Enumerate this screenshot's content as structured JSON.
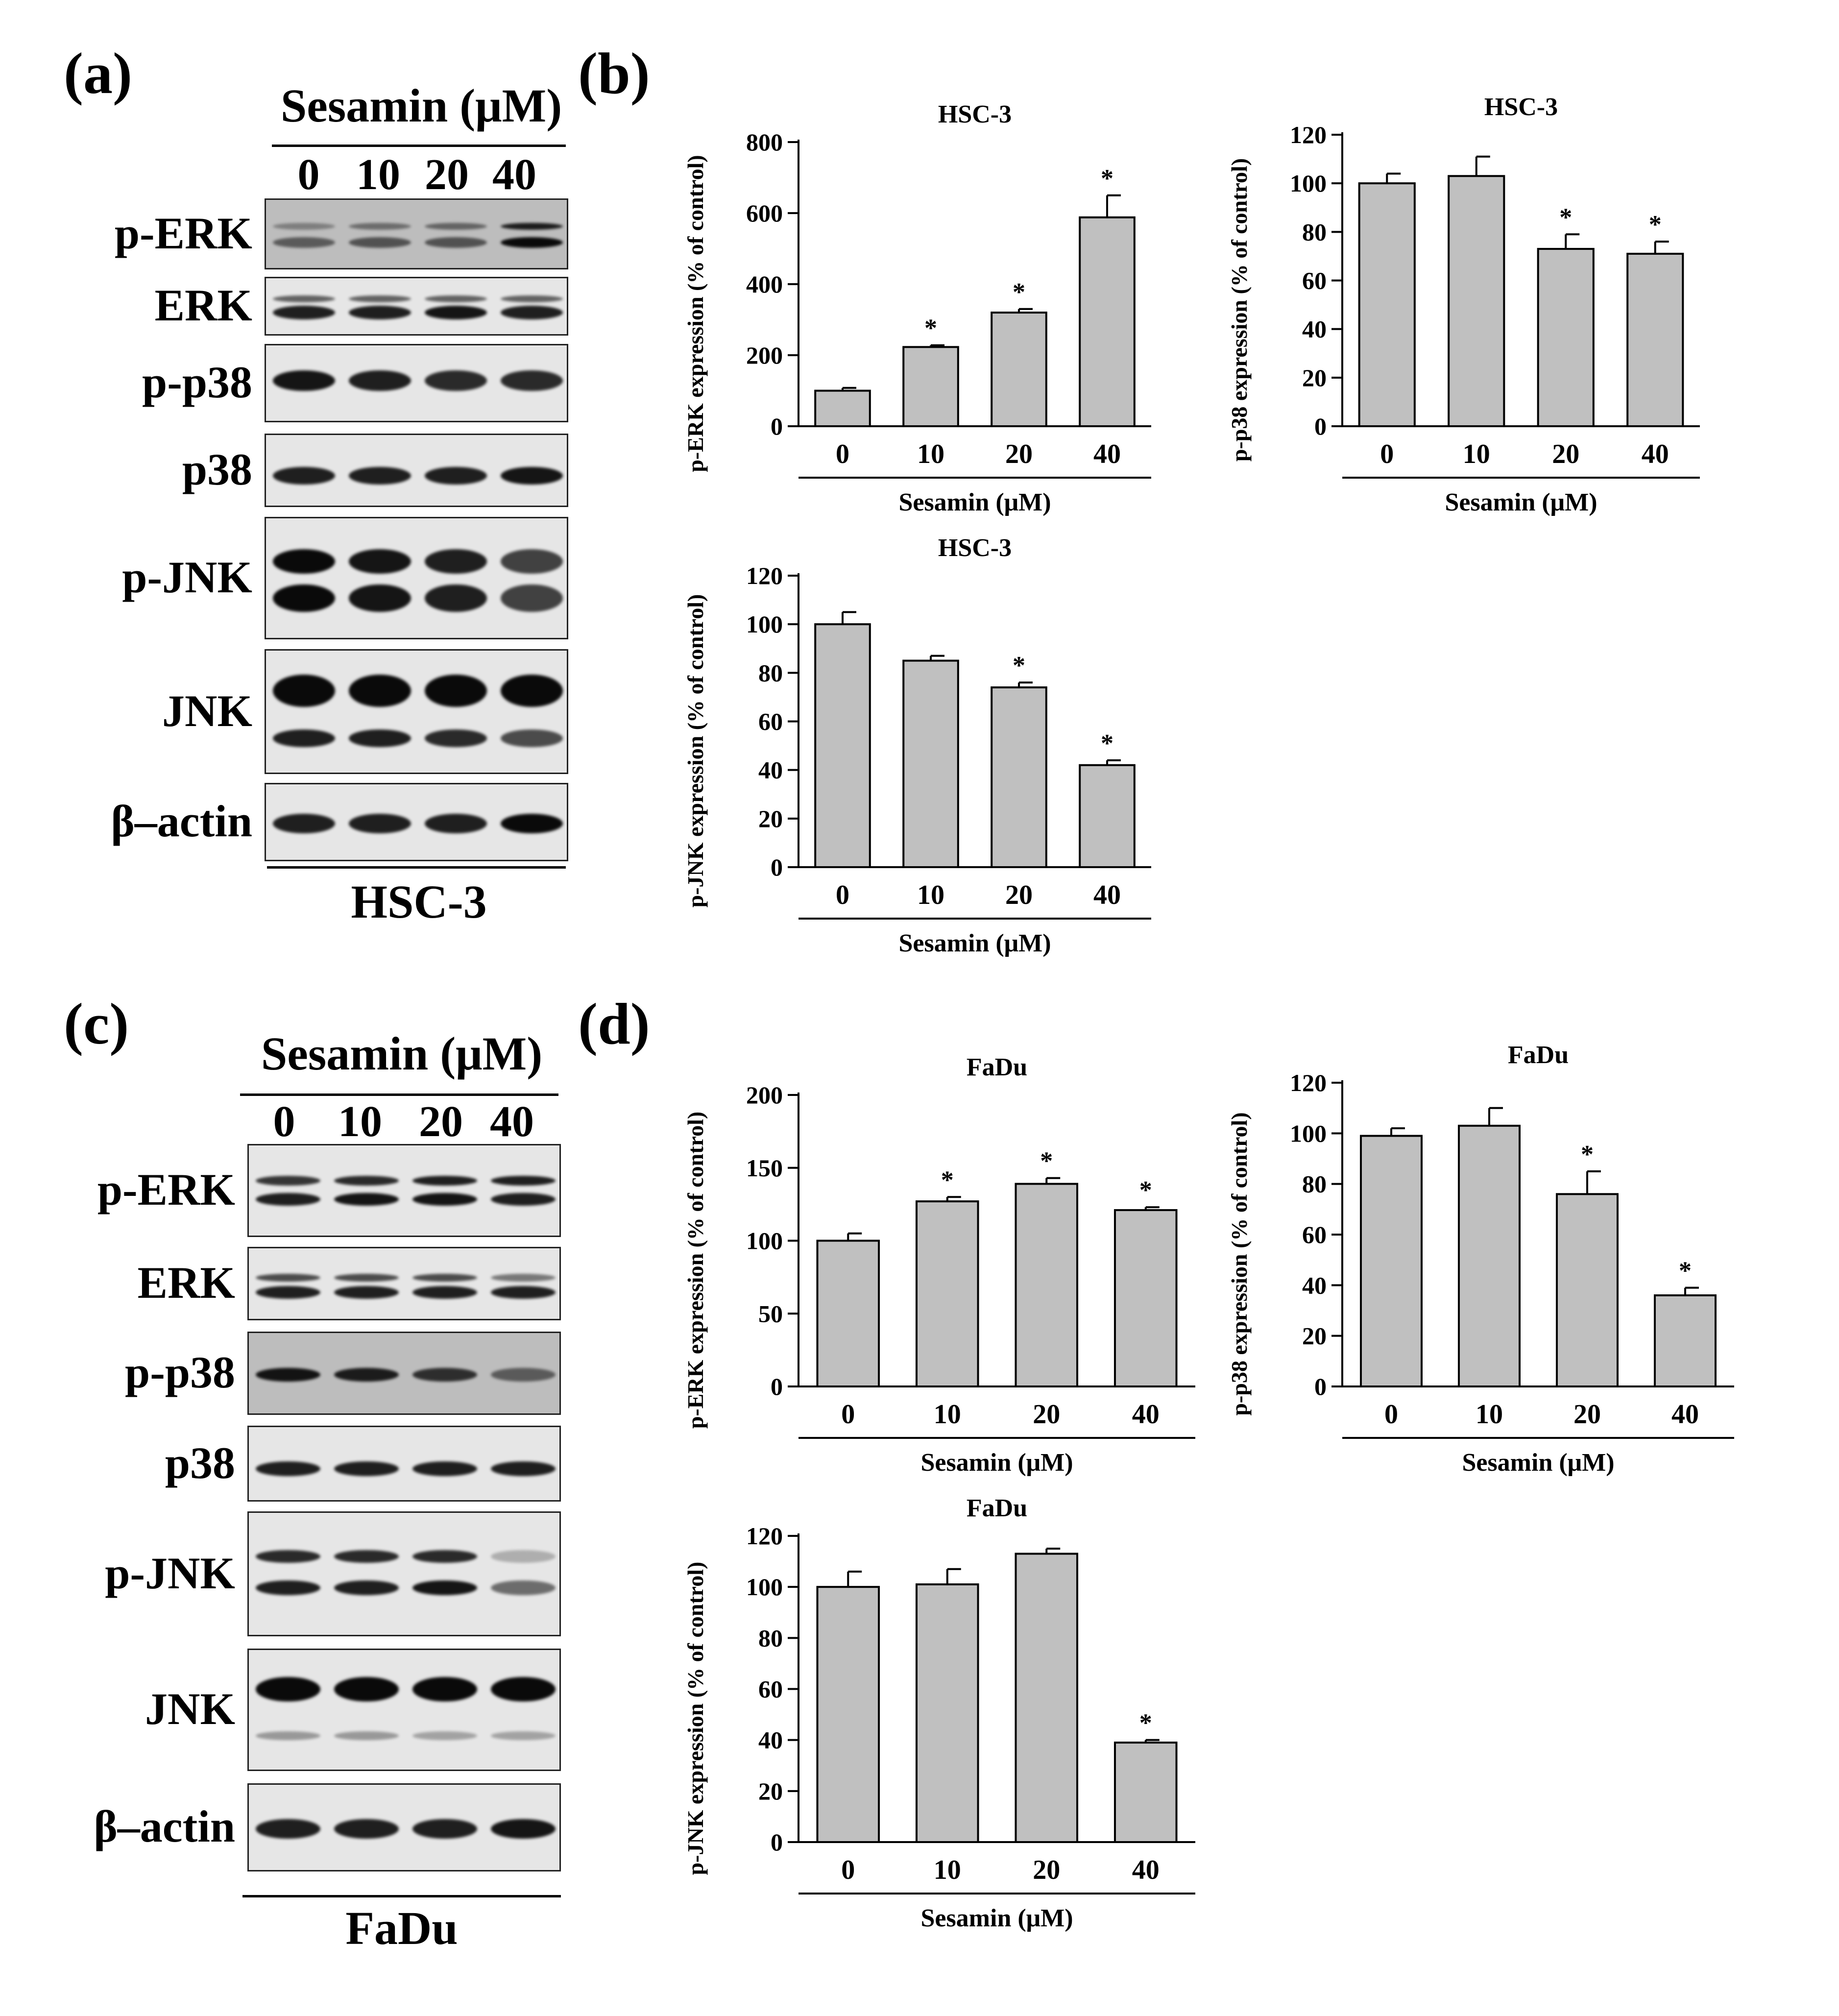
{
  "panels": {
    "a": "(a)",
    "b": "(b)",
    "c": "(c)",
    "d": "(d)"
  },
  "blot_top": {
    "title": "Sesamin (μM)",
    "lanes": [
      "0",
      "10",
      "20",
      "40"
    ],
    "labels": [
      "p-ERK",
      "ERK",
      "p-p38",
      "p38",
      "p-JNK",
      "JNK",
      "β–actin"
    ],
    "cell": "HSC-3"
  },
  "blot_bottom": {
    "title": "Sesamin (μM)",
    "lanes": [
      "0",
      "10",
      "20",
      "40"
    ],
    "labels": [
      "p-ERK",
      "ERK",
      "p-p38",
      "p38",
      "p-JNK",
      "JNK",
      "β–actin"
    ],
    "cell": "FaDu"
  },
  "colors": {
    "bar_fill": "#c0c0c0",
    "bar_stroke": "#000000",
    "membrane_bg": "#e6e6e6",
    "band": "#0a0a0a"
  },
  "chart_data": [
    {
      "type": "bar",
      "title": "HSC-3",
      "categories": [
        "0",
        "10",
        "20",
        "40"
      ],
      "values": [
        100,
        223,
        320,
        588
      ],
      "errors": [
        8,
        5,
        10,
        62
      ],
      "significant": [
        "",
        "*",
        "*",
        "*"
      ],
      "xlabel": "Sesamin (μM)",
      "ylabel": "p-ERK  expression (% of control)",
      "ylim": [
        0,
        800
      ],
      "yticks": [
        "0",
        "200",
        "400",
        "600",
        "800"
      ]
    },
    {
      "type": "bar",
      "title": "HSC-3",
      "categories": [
        "0",
        "10",
        "20",
        "40"
      ],
      "values": [
        100,
        103,
        73,
        71
      ],
      "errors": [
        4,
        8,
        6,
        5
      ],
      "significant": [
        "",
        "",
        "*",
        "*"
      ],
      "xlabel": "Sesamin (μM)",
      "ylabel": "p-p38  expression (% of control)",
      "ylim": [
        0,
        120
      ],
      "yticks": [
        "0",
        "20",
        "40",
        "60",
        "80",
        "100",
        "120"
      ]
    },
    {
      "type": "bar",
      "title": "HSC-3",
      "categories": [
        "0",
        "10",
        "20",
        "40"
      ],
      "values": [
        100,
        85,
        74,
        42
      ],
      "errors": [
        5,
        2,
        2,
        2
      ],
      "significant": [
        "",
        "",
        "*",
        "*"
      ],
      "xlabel": "Sesamin (μM)",
      "ylabel": "p-JNK expression (% of control)",
      "ylim": [
        0,
        120
      ],
      "yticks": [
        "0",
        "20",
        "40",
        "60",
        "80",
        "100",
        "120"
      ]
    },
    {
      "type": "bar",
      "title": "FaDu",
      "categories": [
        "0",
        "10",
        "20",
        "40"
      ],
      "values": [
        100,
        127,
        139,
        121
      ],
      "errors": [
        5,
        3,
        4,
        2
      ],
      "significant": [
        "",
        "*",
        "*",
        "*"
      ],
      "xlabel": "Sesamin (μM)",
      "ylabel": "p-ERK  expression (% of control)",
      "ylim": [
        0,
        200
      ],
      "yticks": [
        "0",
        "50",
        "100",
        "150",
        "200"
      ]
    },
    {
      "type": "bar",
      "title": "FaDu",
      "categories": [
        "0",
        "10",
        "20",
        "40"
      ],
      "values": [
        99,
        103,
        76,
        36
      ],
      "errors": [
        3,
        7,
        9,
        3
      ],
      "significant": [
        "",
        "",
        "*",
        "*"
      ],
      "xlabel": "Sesamin (μM)",
      "ylabel": "p-p38  expression (% of control)",
      "ylim": [
        0,
        120
      ],
      "yticks": [
        "0",
        "20",
        "40",
        "60",
        "80",
        "100",
        "120"
      ]
    },
    {
      "type": "bar",
      "title": "FaDu",
      "categories": [
        "0",
        "10",
        "20",
        "40"
      ],
      "values": [
        100,
        101,
        113,
        39
      ],
      "errors": [
        6,
        6,
        2,
        1
      ],
      "significant": [
        "",
        "",
        "",
        "*"
      ],
      "xlabel": "Sesamin (μM)",
      "ylabel": "p-JNK expression (% of control)",
      "ylim": [
        0,
        120
      ],
      "yticks": [
        "0",
        "20",
        "40",
        "60",
        "80",
        "100",
        "120"
      ]
    }
  ]
}
